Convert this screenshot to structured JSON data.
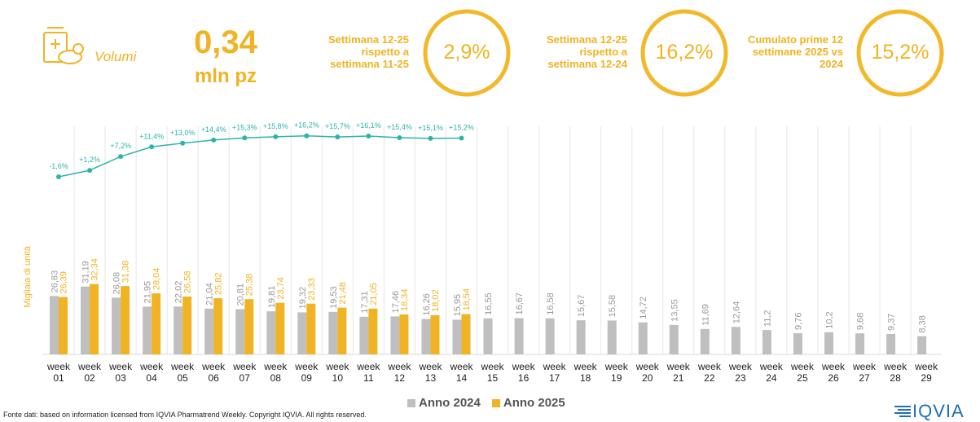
{
  "header": {
    "icon_label": "Volumi",
    "value": "0,34",
    "unit": "mln pz"
  },
  "kpis": [
    {
      "label": "Settimana 12-25 rispetto a settimana 11-25",
      "value": "2,9%"
    },
    {
      "label": "Settimana 12-25 rispetto a settimana 12-24",
      "value": "16,2%"
    },
    {
      "label": "Cumulato prime 12 settimane 2025 vs 2024",
      "value": "15,2%"
    }
  ],
  "chart_data": {
    "type": "bar",
    "ylabel": "Migliaia di unità",
    "categories": [
      "week 01",
      "week 02",
      "week 03",
      "week 04",
      "week 05",
      "week 06",
      "week 07",
      "week 08",
      "week 09",
      "week 10",
      "week 11",
      "week 12",
      "week 13",
      "week 14",
      "week 15",
      "week 16",
      "week 17",
      "week 18",
      "week 19",
      "week 20",
      "week 21",
      "week 22",
      "week 23",
      "week 24",
      "week 25",
      "week 26",
      "week 27",
      "week 28",
      "week 29"
    ],
    "ylim": [
      0,
      100
    ],
    "y2lim": [
      -20,
      20
    ],
    "series": [
      {
        "name": "Anno 2024",
        "color": "#bfbfbf",
        "values": [
          26.83,
          31.19,
          26.08,
          21.95,
          22.02,
          21.04,
          20.81,
          19.81,
          19.32,
          19.53,
          17.31,
          17.46,
          16.26,
          15.95,
          16.55,
          16.67,
          16.58,
          15.67,
          15.58,
          14.72,
          13.55,
          11.69,
          12.64,
          11.2,
          9.76,
          10.2,
          9.68,
          9.37,
          8.38
        ],
        "value_labels": [
          "26,83",
          "31,19",
          "26,08",
          "21,95",
          "22,02",
          "21,04",
          "20,81",
          "19,81",
          "19,32",
          "19,53",
          "17,31",
          "17,46",
          "16,26",
          "15,95",
          "16,55",
          "16,67",
          "16,58",
          "15,67",
          "15,58",
          "14,72",
          "13,55",
          "11,69",
          "12,64",
          "11,2",
          "9,76",
          "10,2",
          "9,68",
          "9,37",
          "8,38"
        ]
      },
      {
        "name": "Anno 2025",
        "color": "#f0b323",
        "values": [
          26.39,
          32.34,
          31.38,
          28.04,
          26.58,
          25.82,
          25.38,
          23.74,
          23.33,
          21.48,
          21.05,
          18.34,
          18.02,
          18.54,
          null,
          null,
          null,
          null,
          null,
          null,
          null,
          null,
          null,
          null,
          null,
          null,
          null,
          null,
          null
        ],
        "value_labels": [
          "26,39",
          "32,34",
          "31,38",
          "28,04",
          "26,58",
          "25,82",
          "25,38",
          "23,74",
          "23,33",
          "21,48",
          "21,05",
          "18,34",
          "18,02",
          "18,54",
          null,
          null,
          null,
          null,
          null,
          null,
          null,
          null,
          null,
          null,
          null,
          null,
          null,
          null,
          null
        ]
      },
      {
        "type": "line",
        "axis": "y2",
        "color": "#2bb5a8",
        "values": [
          -1.6,
          1.2,
          7.2,
          11.4,
          13.0,
          14.4,
          15.3,
          15.8,
          16.2,
          15.7,
          16.1,
          15.4,
          15.1,
          15.2,
          null,
          null,
          null,
          null,
          null,
          null,
          null,
          null,
          null,
          null,
          null,
          null,
          null,
          null,
          null
        ],
        "value_labels": [
          "-1,6%",
          "+1,2%",
          "+7,2%",
          "+11,4%",
          "+13,0%",
          "+14,4%",
          "+15,3%",
          "+15,8%",
          "+16,2%",
          "+15,7%",
          "+16,1%",
          "+15,4%",
          "+15,1%",
          "+15,2%",
          null,
          null,
          null,
          null,
          null,
          null,
          null,
          null,
          null,
          null,
          null,
          null,
          null,
          null,
          null
        ]
      }
    ]
  },
  "footer": {
    "source": "Fonte dati: based on information licensed from IQVIA Pharmatrend Weekly. Copyright IQVIA. All rights reserved.",
    "logo": "IQVIA"
  }
}
